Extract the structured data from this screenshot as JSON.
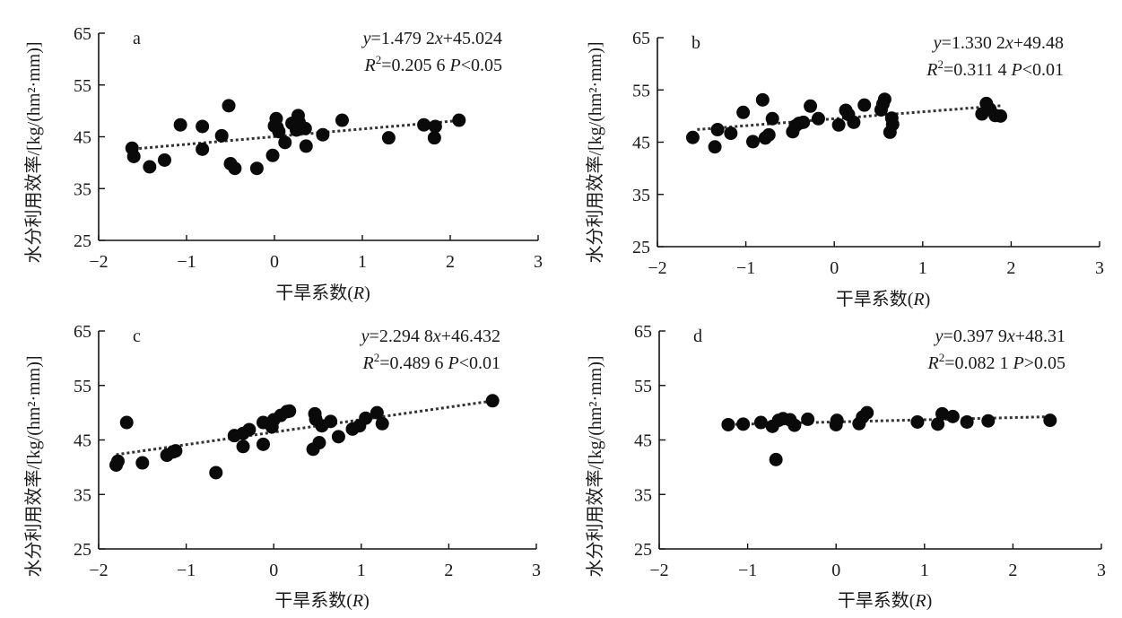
{
  "chart_data": [
    {
      "type": "scatter",
      "panel": "a",
      "xlabel": "干旱系数(R)",
      "ylabel": "水分利用效率/[kg/(hm²·mm)]",
      "xlim": [
        -2,
        3
      ],
      "ylim": [
        25,
        65
      ],
      "xticks": [
        -2,
        -1,
        0,
        1,
        2,
        3
      ],
      "yticks": [
        25,
        35,
        45,
        55,
        65
      ],
      "trendline": {
        "slope": 1.4792,
        "intercept": 45.024,
        "style": "dotted",
        "x_range": [
          -1.6,
          2.1
        ]
      },
      "annotation": {
        "eq": "y=1.479 2x+45.024",
        "r2": "R²=0.205 6 P<0.05",
        "eq_parts": [
          "y",
          "=1.479 2",
          "x",
          "+45.024"
        ],
        "r2_parts": [
          "R",
          "2",
          "=0.205 6 ",
          "P",
          "<0.05"
        ]
      },
      "points": [
        [
          -1.62,
          42.8
        ],
        [
          -1.6,
          41.2
        ],
        [
          -1.42,
          39.2
        ],
        [
          -1.25,
          40.5
        ],
        [
          -1.07,
          47.3
        ],
        [
          -0.82,
          47.0
        ],
        [
          -0.82,
          42.6
        ],
        [
          -0.6,
          45.2
        ],
        [
          -0.52,
          51.0
        ],
        [
          -0.5,
          39.8
        ],
        [
          -0.45,
          38.9
        ],
        [
          -0.2,
          38.9
        ],
        [
          -0.02,
          41.4
        ],
        [
          0.0,
          47.1
        ],
        [
          0.02,
          48.5
        ],
        [
          0.03,
          46.8
        ],
        [
          0.05,
          46.0
        ],
        [
          0.12,
          43.9
        ],
        [
          0.2,
          47.6
        ],
        [
          0.25,
          46.3
        ],
        [
          0.27,
          49.1
        ],
        [
          0.28,
          47.8
        ],
        [
          0.35,
          46.6
        ],
        [
          0.36,
          43.2
        ],
        [
          0.55,
          45.4
        ],
        [
          0.77,
          48.2
        ],
        [
          1.3,
          44.8
        ],
        [
          1.7,
          47.3
        ],
        [
          1.83,
          47.0
        ],
        [
          1.82,
          44.8
        ],
        [
          2.1,
          48.2
        ]
      ]
    },
    {
      "type": "scatter",
      "panel": "b",
      "xlabel": "干旱系数(R)",
      "ylabel": "水分利用效率/[kg/(hm²·mm)]",
      "xlim": [
        -2,
        3
      ],
      "ylim": [
        25,
        65
      ],
      "xticks": [
        -2,
        -1,
        0,
        1,
        2,
        3
      ],
      "yticks": [
        25,
        35,
        45,
        55,
        65
      ],
      "trendline": {
        "slope": 1.3302,
        "intercept": 49.48,
        "style": "dotted",
        "x_range": [
          -1.55,
          1.9
        ]
      },
      "annotation": {
        "eq": "y=1.330 2x+49.48",
        "r2": "R²=0.311 4 P<0.01",
        "eq_parts": [
          "y",
          "=1.330 2",
          "x",
          "+49.48"
        ],
        "r2_parts": [
          "R",
          "2",
          "=0.311 4 ",
          "P",
          "<0.01"
        ]
      },
      "points": [
        [
          -1.6,
          45.9
        ],
        [
          -1.35,
          44.1
        ],
        [
          -1.32,
          47.4
        ],
        [
          -1.17,
          46.7
        ],
        [
          -1.03,
          50.7
        ],
        [
          -0.92,
          45.1
        ],
        [
          -0.81,
          53.1
        ],
        [
          -0.78,
          45.8
        ],
        [
          -0.74,
          46.4
        ],
        [
          -0.7,
          49.5
        ],
        [
          -0.47,
          47.0
        ],
        [
          -0.44,
          48.1
        ],
        [
          -0.4,
          48.6
        ],
        [
          -0.35,
          48.8
        ],
        [
          -0.27,
          51.9
        ],
        [
          -0.18,
          49.5
        ],
        [
          0.05,
          48.3
        ],
        [
          0.13,
          51.1
        ],
        [
          0.16,
          50.3
        ],
        [
          0.22,
          48.8
        ],
        [
          0.34,
          52.1
        ],
        [
          0.53,
          51.2
        ],
        [
          0.57,
          53.2
        ],
        [
          0.55,
          52.3
        ],
        [
          0.63,
          46.9
        ],
        [
          0.65,
          49.6
        ],
        [
          0.66,
          48.4
        ],
        [
          1.67,
          50.4
        ],
        [
          1.72,
          52.4
        ],
        [
          1.76,
          51.3
        ],
        [
          1.82,
          50.1
        ],
        [
          1.88,
          50.0
        ]
      ]
    },
    {
      "type": "scatter",
      "panel": "c",
      "xlabel": "干旱系数(R)",
      "ylabel": "水分利用效率/[kg/(hm²·mm)]",
      "xlim": [
        -2,
        3
      ],
      "ylim": [
        25,
        65
      ],
      "xticks": [
        -2,
        -1,
        0,
        1,
        2,
        3
      ],
      "yticks": [
        25,
        35,
        45,
        55,
        65
      ],
      "trendline": {
        "slope": 2.2948,
        "intercept": 46.432,
        "style": "dotted",
        "x_range": [
          -1.8,
          2.5
        ]
      },
      "annotation": {
        "eq": "y=2.294 8x+46.432",
        "r2": "R²=0.489 6 P<0.01",
        "eq_parts": [
          "y",
          "=2.294 8",
          "x",
          "+46.432"
        ],
        "r2_parts": [
          "R",
          "2",
          "=0.489 6 ",
          "P",
          "<0.01"
        ]
      },
      "points": [
        [
          -1.8,
          40.4
        ],
        [
          -1.78,
          41.1
        ],
        [
          -1.68,
          48.2
        ],
        [
          -1.5,
          40.8
        ],
        [
          -1.22,
          42.2
        ],
        [
          -1.15,
          42.8
        ],
        [
          -1.12,
          43.0
        ],
        [
          -0.66,
          39.0
        ],
        [
          -0.45,
          45.8
        ],
        [
          -0.35,
          46.2
        ],
        [
          -0.35,
          43.8
        ],
        [
          -0.28,
          46.9
        ],
        [
          -0.12,
          48.2
        ],
        [
          -0.12,
          44.2
        ],
        [
          -0.02,
          47.4
        ],
        [
          0.0,
          48.7
        ],
        [
          0.08,
          49.5
        ],
        [
          0.15,
          50.2
        ],
        [
          0.18,
          50.3
        ],
        [
          0.45,
          43.3
        ],
        [
          0.52,
          44.5
        ],
        [
          0.47,
          49.8
        ],
        [
          0.48,
          48.8
        ],
        [
          0.55,
          47.6
        ],
        [
          0.65,
          48.4
        ],
        [
          0.74,
          45.6
        ],
        [
          0.9,
          47.0
        ],
        [
          0.98,
          47.6
        ],
        [
          1.05,
          49.0
        ],
        [
          1.18,
          50.0
        ],
        [
          1.24,
          48.0
        ],
        [
          2.5,
          52.2
        ]
      ]
    },
    {
      "type": "scatter",
      "panel": "d",
      "xlabel": "干旱系数(R)",
      "ylabel": "水分利用效率/[kg/(hm²·mm)]",
      "xlim": [
        -2,
        3
      ],
      "ylim": [
        25,
        65
      ],
      "xticks": [
        -2,
        -1,
        0,
        1,
        2,
        3
      ],
      "yticks": [
        25,
        35,
        45,
        55,
        65
      ],
      "trendline": {
        "slope": 0.3979,
        "intercept": 48.31,
        "style": "dotted",
        "x_range": [
          -1.2,
          2.45
        ]
      },
      "annotation": {
        "eq": "y=0.397 9x+48.31",
        "r2": "R²=0.082 1 P>0.05",
        "eq_parts": [
          "y",
          "=0.397 9",
          "x",
          "+48.31"
        ],
        "r2_parts": [
          "R",
          "2",
          "=0.082 1 ",
          "P",
          ">0.05"
        ]
      },
      "points": [
        [
          -1.22,
          47.8
        ],
        [
          -1.05,
          47.9
        ],
        [
          -0.85,
          48.2
        ],
        [
          -0.72,
          47.5
        ],
        [
          -0.65,
          48.6
        ],
        [
          -0.6,
          48.9
        ],
        [
          -0.52,
          48.7
        ],
        [
          -0.47,
          47.7
        ],
        [
          -0.68,
          41.4
        ],
        [
          -0.32,
          48.8
        ],
        [
          0.0,
          47.8
        ],
        [
          0.01,
          48.6
        ],
        [
          0.26,
          48.0
        ],
        [
          0.3,
          49.2
        ],
        [
          0.35,
          50.0
        ],
        [
          0.92,
          48.3
        ],
        [
          1.15,
          47.9
        ],
        [
          1.2,
          49.8
        ],
        [
          1.32,
          49.3
        ],
        [
          1.48,
          48.3
        ],
        [
          1.72,
          48.5
        ],
        [
          2.42,
          48.6
        ]
      ]
    }
  ]
}
